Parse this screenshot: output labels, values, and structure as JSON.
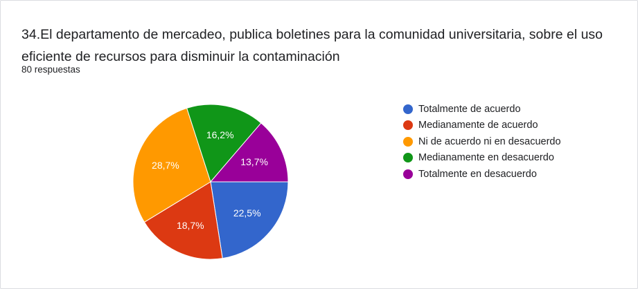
{
  "question": {
    "title": "34.El departamento de mercadeo, publica boletines para la comunidad universitaria, sobre el uso eficiente de recursos para disminuir la contaminación",
    "responses": "80 respuestas"
  },
  "chart_data": {
    "type": "pie",
    "categories": [
      "Totalmente de acuerdo",
      "Medianamente de acuerdo",
      "Ni de acuerdo ni en desacuerdo",
      "Medianamente en desacuerdo",
      "Totalmente en desacuerdo"
    ],
    "values": [
      22.5,
      18.7,
      28.7,
      16.2,
      13.7
    ],
    "labels": [
      "22,5%",
      "18,7%",
      "28,7%",
      "16,2%",
      "13,7%"
    ],
    "colors": [
      "#3366cc",
      "#dc3912",
      "#ff9900",
      "#109618",
      "#990099"
    ],
    "legend_position": "right"
  }
}
